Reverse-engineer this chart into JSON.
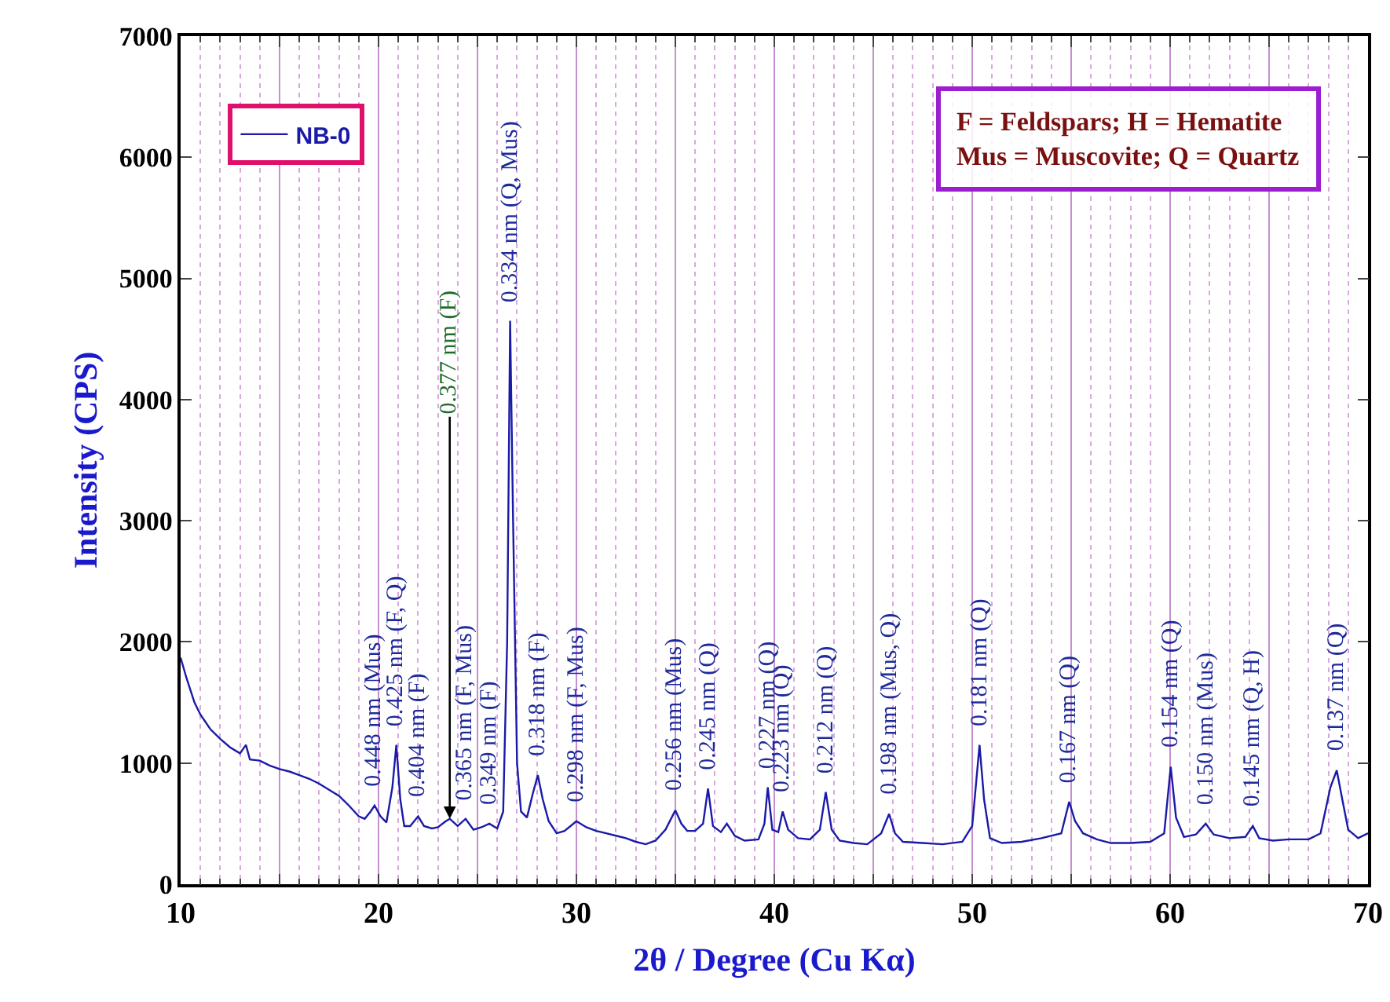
{
  "chart_data": {
    "type": "line",
    "xlabel": "2θ / Degree (Cu Kα)",
    "ylabel": "Intensity (CPS)",
    "xlim": [
      10,
      70
    ],
    "xticks": [
      10,
      {
        "value": 11,
        "label": null
      },
      {
        "value": 12,
        "label": null
      },
      {
        "value": 13,
        "label": null
      },
      {
        "value": 14,
        "label": null
      },
      {
        "value": 15,
        "label": null
      },
      {
        "value": 16,
        "label": null
      },
      {
        "value": 17,
        "label": null
      },
      {
        "value": 18,
        "label": null
      },
      {
        "value": 19,
        "label": null
      },
      20,
      {
        "value": 21,
        "label": null
      },
      {
        "value": 22,
        "label": null
      },
      {
        "value": 23,
        "label": null
      },
      {
        "value": 24,
        "label": null
      },
      {
        "value": 25,
        "label": null
      },
      {
        "value": 26,
        "label": null
      },
      {
        "value": 27,
        "label": null
      },
      {
        "value": 28,
        "label": null
      },
      {
        "value": 29,
        "label": null
      },
      30,
      {
        "value": 31,
        "label": null
      },
      {
        "value": 32,
        "label": null
      },
      {
        "value": 33,
        "label": null
      },
      {
        "value": 34,
        "label": null
      },
      {
        "value": 35,
        "label": null
      },
      {
        "value": 36,
        "label": null
      },
      {
        "value": 37,
        "label": null
      },
      {
        "value": 38,
        "label": null
      },
      {
        "value": 39,
        "label": null
      },
      40,
      {
        "value": 41,
        "label": null
      },
      {
        "value": 42,
        "label": null
      },
      {
        "value": 43,
        "label": null
      },
      {
        "value": 44,
        "label": null
      },
      {
        "value": 45,
        "label": null
      },
      {
        "value": 46,
        "label": null
      },
      {
        "value": 47,
        "label": null
      },
      {
        "value": 48,
        "label": null
      },
      {
        "value": 49,
        "label": null
      },
      50,
      {
        "value": 51,
        "label": null
      },
      {
        "value": 52,
        "label": null
      },
      {
        "value": 53,
        "label": null
      },
      {
        "value": 54,
        "label": null
      },
      {
        "value": 55,
        "label": null
      },
      {
        "value": 56,
        "label": null
      },
      {
        "value": 57,
        "label": null
      },
      {
        "value": 58,
        "label": null
      },
      {
        "value": 59,
        "label": null
      },
      60,
      {
        "value": 61,
        "label": null
      },
      {
        "value": 62,
        "label": null
      },
      {
        "value": 63,
        "label": null
      },
      {
        "value": 64,
        "label": null
      },
      {
        "value": 65,
        "label": null
      },
      {
        "value": 66,
        "label": null
      },
      {
        "value": 67,
        "label": null
      },
      {
        "value": 68,
        "label": null
      },
      {
        "value": 69,
        "label": null
      },
      70
    ],
    "ylim": [
      0,
      7000
    ],
    "yticks": [
      0,
      1000,
      2000,
      3000,
      4000,
      5000,
      6000,
      7000
    ],
    "grid": "x",
    "legend": "top left",
    "marker": "none",
    "line_style": "solid",
    "series": [
      {
        "name": "NB-0",
        "color": "#1a1aa8",
        "x": [
          10,
          10.3,
          10.7,
          11,
          11.5,
          12,
          12.5,
          13,
          13.3,
          13.5,
          14,
          14.5,
          15,
          15.5,
          16,
          16.5,
          17,
          17.5,
          18,
          18.5,
          19,
          19.3,
          19.6,
          19.8,
          20.1,
          20.4,
          20.7,
          20.9,
          21.1,
          21.3,
          21.6,
          22,
          22.3,
          22.7,
          23,
          23.4,
          23.6,
          24,
          24.4,
          24.8,
          25.2,
          25.6,
          26,
          26.3,
          26.5,
          26.65,
          26.8,
          27,
          27.2,
          27.5,
          27.8,
          28.05,
          28.3,
          28.6,
          29,
          29.4,
          30,
          30.5,
          31,
          31.5,
          32,
          32.5,
          33,
          33.5,
          34,
          34.5,
          35,
          35.3,
          35.6,
          36,
          36.4,
          36.65,
          36.9,
          37.3,
          37.6,
          38,
          38.5,
          39.2,
          39.5,
          39.67,
          39.9,
          40.2,
          40.42,
          40.7,
          41.2,
          41.8,
          42.3,
          42.6,
          42.9,
          43.3,
          44,
          44.7,
          45.4,
          45.8,
          46.1,
          46.5,
          47.5,
          48.5,
          49.5,
          50,
          50.37,
          50.6,
          50.9,
          51.5,
          52.5,
          53.5,
          54.5,
          54.9,
          55.2,
          55.6,
          56.3,
          57,
          58,
          59,
          59.7,
          60.03,
          60.3,
          60.7,
          61.3,
          61.8,
          62.2,
          63,
          63.8,
          64.18,
          64.5,
          65.2,
          66,
          67,
          67.6,
          68.1,
          68.42,
          68.7,
          69,
          69.5,
          70
        ],
        "values": [
          1870,
          1700,
          1500,
          1400,
          1280,
          1200,
          1130,
          1080,
          1150,
          1030,
          1020,
          980,
          950,
          930,
          900,
          870,
          830,
          780,
          730,
          650,
          560,
          540,
          600,
          650,
          560,
          510,
          800,
          1150,
          700,
          480,
          480,
          560,
          480,
          460,
          470,
          520,
          540,
          480,
          540,
          450,
          470,
          500,
          460,
          600,
          2000,
          4650,
          3000,
          1000,
          600,
          550,
          750,
          900,
          700,
          520,
          420,
          440,
          520,
          470,
          440,
          420,
          400,
          380,
          350,
          330,
          360,
          450,
          610,
          500,
          440,
          440,
          500,
          790,
          480,
          430,
          500,
          400,
          360,
          370,
          500,
          800,
          450,
          430,
          600,
          450,
          380,
          370,
          450,
          760,
          450,
          360,
          340,
          330,
          420,
          580,
          420,
          350,
          340,
          330,
          350,
          480,
          1150,
          700,
          380,
          340,
          350,
          380,
          420,
          680,
          520,
          420,
          370,
          340,
          340,
          350,
          420,
          970,
          550,
          390,
          410,
          500,
          410,
          380,
          390,
          480,
          380,
          360,
          370,
          370,
          420,
          800,
          940,
          700,
          450,
          380,
          420
        ]
      }
    ],
    "annotations": [
      {
        "text": "0.448 nm (Mus)",
        "x": 19.8,
        "y": 650
      },
      {
        "text": "0.425 nm (F, Q)",
        "x": 20.9,
        "y": 1150
      },
      {
        "text": "0.404 nm (F)",
        "x": 22,
        "y": 560
      },
      {
        "text": "0.377 nm (F)",
        "x": 23.6,
        "y": 540
      },
      {
        "text": "0.365 nm (F, Mus)",
        "x": 24.4,
        "y": 540
      },
      {
        "text": "0.349 nm (F)",
        "x": 25.6,
        "y": 500
      },
      {
        "text": "0.334 nm (Q, Mus)",
        "x": 26.65,
        "y": 4650
      },
      {
        "text": "0.318 nm (F)",
        "x": 28.05,
        "y": 900
      },
      {
        "text": "0.298 nm (F, Mus)",
        "x": 30,
        "y": 520
      },
      {
        "text": "0.256 nm (Mus)",
        "x": 35,
        "y": 610
      },
      {
        "text": "0.245 nm (Q)",
        "x": 36.65,
        "y": 790
      },
      {
        "text": "0.227 nm (Q)",
        "x": 39.67,
        "y": 800
      },
      {
        "text": "0.223 nm (Q)",
        "x": 40.42,
        "y": 600
      },
      {
        "text": "0.212 nm (Q)",
        "x": 42.6,
        "y": 760
      },
      {
        "text": "0.198 nm (Mus, Q)",
        "x": 45.8,
        "y": 580
      },
      {
        "text": "0.181 nm (Q)",
        "x": 50.37,
        "y": 1150
      },
      {
        "text": "0.167 nm (Q)",
        "x": 54.9,
        "y": 680
      },
      {
        "text": "0.154 nm (Q)",
        "x": 60.03,
        "y": 970
      },
      {
        "text": "0.150 nm (Mus)",
        "x": 61.8,
        "y": 500
      },
      {
        "text": "0.145 nm (Q, H)",
        "x": 64.18,
        "y": 480
      },
      {
        "text": "0.137 nm (Q)",
        "x": 68.42,
        "y": 940
      },
      "F = Feldspars; H = Hematite\nMus = Muscovite; Q = Quartz"
    ]
  }
}
